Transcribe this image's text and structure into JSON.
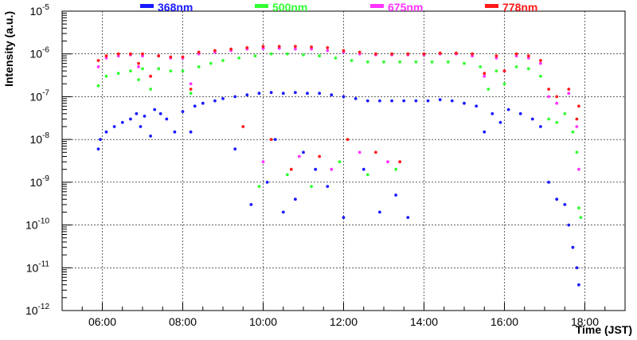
{
  "chart_data": {
    "type": "scatter",
    "title": "",
    "xlabel": "Time (JST)",
    "ylabel": "Intensity (a.u.)",
    "x_unit": "hours (JST)",
    "xlim": [
      5.0,
      19.0
    ],
    "ylim": [
      1e-12,
      1e-05
    ],
    "yscale": "log",
    "grid": true,
    "legend_position": "top",
    "x_ticks": [
      {
        "value": 6,
        "label": "06:00"
      },
      {
        "value": 8,
        "label": "08:00"
      },
      {
        "value": 10,
        "label": "10:00"
      },
      {
        "value": 12,
        "label": "12:00"
      },
      {
        "value": 14,
        "label": "14:00"
      },
      {
        "value": 16,
        "label": "16:00"
      },
      {
        "value": 18,
        "label": "18:00"
      }
    ],
    "y_ticks": [
      {
        "value": 1e-12,
        "base": "10",
        "exp": "-12"
      },
      {
        "value": 1e-11,
        "base": "10",
        "exp": "-11"
      },
      {
        "value": 1e-10,
        "base": "10",
        "exp": "-10"
      },
      {
        "value": 1e-09,
        "base": "10",
        "exp": "-9"
      },
      {
        "value": 1e-08,
        "base": "10",
        "exp": "-8"
      },
      {
        "value": 1e-07,
        "base": "10",
        "exp": "-7"
      },
      {
        "value": 1e-06,
        "base": "10",
        "exp": "-6"
      },
      {
        "value": 1e-05,
        "base": "10",
        "exp": "-5"
      }
    ],
    "series": [
      {
        "name": "368nm",
        "color": "#1a1aff",
        "points": [
          [
            5.9,
            6e-09
          ],
          [
            5.95,
            1e-08
          ],
          [
            6.1,
            1.5e-08
          ],
          [
            6.3,
            2e-08
          ],
          [
            6.5,
            2.5e-08
          ],
          [
            6.7,
            3e-08
          ],
          [
            6.85,
            4e-08
          ],
          [
            6.95,
            2e-08
          ],
          [
            7.05,
            3.5e-08
          ],
          [
            7.2,
            1.2e-08
          ],
          [
            7.3,
            5e-08
          ],
          [
            7.45,
            4e-08
          ],
          [
            7.6,
            3e-08
          ],
          [
            7.8,
            1.5e-08
          ],
          [
            8.0,
            4.5e-08
          ],
          [
            8.2,
            1.5e-08
          ],
          [
            8.3,
            6e-08
          ],
          [
            8.5,
            7e-08
          ],
          [
            8.8,
            8e-08
          ],
          [
            9.0,
            9e-08
          ],
          [
            9.3,
            1e-07
          ],
          [
            9.6,
            1.1e-07
          ],
          [
            9.9,
            1.2e-07
          ],
          [
            10.2,
            1.25e-07
          ],
          [
            10.5,
            1.2e-07
          ],
          [
            10.8,
            1.25e-07
          ],
          [
            11.1,
            1.2e-07
          ],
          [
            11.4,
            1.2e-07
          ],
          [
            11.7,
            1.1e-07
          ],
          [
            12.0,
            1e-07
          ],
          [
            12.3,
            9e-08
          ],
          [
            12.6,
            8e-08
          ],
          [
            12.9,
            8e-08
          ],
          [
            13.2,
            8e-08
          ],
          [
            13.5,
            8e-08
          ],
          [
            13.8,
            8e-08
          ],
          [
            14.1,
            8e-08
          ],
          [
            14.4,
            8.5e-08
          ],
          [
            14.7,
            8e-08
          ],
          [
            15.0,
            7e-08
          ],
          [
            15.3,
            6e-08
          ],
          [
            15.5,
            1.5e-08
          ],
          [
            15.7,
            4e-08
          ],
          [
            15.9,
            2.5e-08
          ],
          [
            16.1,
            5e-08
          ],
          [
            16.4,
            4e-08
          ],
          [
            16.7,
            3e-08
          ],
          [
            16.9,
            2e-08
          ],
          [
            17.1,
            1e-09
          ],
          [
            17.3,
            4e-10
          ],
          [
            17.5,
            3e-10
          ],
          [
            17.6,
            1e-10
          ],
          [
            17.7,
            3e-11
          ],
          [
            17.8,
            1e-11
          ],
          [
            17.85,
            4e-12
          ],
          [
            9.7,
            3e-10
          ],
          [
            10.1,
            1e-09
          ],
          [
            10.5,
            2e-10
          ],
          [
            10.8,
            4e-10
          ],
          [
            11.3,
            2e-09
          ],
          [
            11.6,
            8e-10
          ],
          [
            12.0,
            1.5e-10
          ],
          [
            12.5,
            2e-09
          ],
          [
            12.9,
            2e-10
          ],
          [
            13.3,
            5e-10
          ],
          [
            13.6,
            1.5e-10
          ],
          [
            9.3,
            6e-09
          ],
          [
            10.3,
            1e-08
          ],
          [
            11.0,
            5e-09
          ]
        ]
      },
      {
        "name": "500nm",
        "color": "#33ff33",
        "points": [
          [
            5.9,
            1.8e-07
          ],
          [
            6.1,
            3e-07
          ],
          [
            6.4,
            3.5e-07
          ],
          [
            6.7,
            4e-07
          ],
          [
            6.9,
            2.5e-07
          ],
          [
            7.0,
            4.5e-07
          ],
          [
            7.2,
            1.5e-07
          ],
          [
            7.4,
            4.5e-07
          ],
          [
            7.7,
            4e-07
          ],
          [
            8.0,
            4e-07
          ],
          [
            8.2,
            1.2e-07
          ],
          [
            8.4,
            5e-07
          ],
          [
            8.7,
            6e-07
          ],
          [
            9.0,
            7e-07
          ],
          [
            9.4,
            8e-07
          ],
          [
            9.8,
            9e-07
          ],
          [
            10.2,
            1e-06
          ],
          [
            10.6,
            1e-06
          ],
          [
            11.0,
            9.5e-07
          ],
          [
            11.4,
            9e-07
          ],
          [
            11.8,
            8e-07
          ],
          [
            12.2,
            7e-07
          ],
          [
            12.6,
            6.5e-07
          ],
          [
            13.0,
            6.5e-07
          ],
          [
            13.4,
            6.5e-07
          ],
          [
            13.8,
            6.5e-07
          ],
          [
            14.2,
            6.5e-07
          ],
          [
            14.6,
            6.5e-07
          ],
          [
            15.0,
            6e-07
          ],
          [
            15.4,
            5e-07
          ],
          [
            15.6,
            1.5e-07
          ],
          [
            15.8,
            4e-07
          ],
          [
            16.0,
            2e-07
          ],
          [
            16.3,
            5e-07
          ],
          [
            16.6,
            4.5e-07
          ],
          [
            16.9,
            3e-07
          ],
          [
            17.1,
            3e-08
          ],
          [
            17.3,
            2.5e-08
          ],
          [
            17.5,
            4e-08
          ],
          [
            17.7,
            1.5e-08
          ],
          [
            17.8,
            5e-09
          ],
          [
            17.85,
            2.5e-10
          ],
          [
            17.9,
            1.5e-10
          ],
          [
            9.9,
            8e-10
          ],
          [
            10.6,
            1.5e-09
          ],
          [
            11.2,
            8e-10
          ],
          [
            11.9,
            3e-09
          ],
          [
            12.6,
            1.5e-09
          ],
          [
            13.3,
            2e-09
          ]
        ]
      },
      {
        "name": "675nm",
        "color": "#ff33ff",
        "points": [
          [
            5.9,
            5e-07
          ],
          [
            6.1,
            8e-07
          ],
          [
            6.4,
            9e-07
          ],
          [
            6.7,
            9.5e-07
          ],
          [
            6.9,
            5e-07
          ],
          [
            7.0,
            9e-07
          ],
          [
            7.2,
            3e-07
          ],
          [
            7.4,
            9e-07
          ],
          [
            7.7,
            8e-07
          ],
          [
            8.0,
            8e-07
          ],
          [
            8.2,
            2e-07
          ],
          [
            8.4,
            1e-06
          ],
          [
            8.8,
            1.1e-06
          ],
          [
            9.2,
            1.2e-06
          ],
          [
            9.6,
            1.3e-06
          ],
          [
            10.0,
            1.35e-06
          ],
          [
            10.4,
            1.35e-06
          ],
          [
            10.8,
            1.3e-06
          ],
          [
            11.2,
            1.3e-06
          ],
          [
            11.6,
            1.2e-06
          ],
          [
            12.0,
            1.1e-06
          ],
          [
            12.4,
            1e-06
          ],
          [
            12.8,
            9.5e-07
          ],
          [
            13.2,
            9.5e-07
          ],
          [
            13.6,
            9.5e-07
          ],
          [
            14.0,
            9.5e-07
          ],
          [
            14.4,
            1e-06
          ],
          [
            14.8,
            1e-06
          ],
          [
            15.2,
            9e-07
          ],
          [
            15.5,
            3e-07
          ],
          [
            15.8,
            8e-07
          ],
          [
            16.0,
            4e-07
          ],
          [
            16.3,
            9e-07
          ],
          [
            16.6,
            8e-07
          ],
          [
            16.9,
            6e-07
          ],
          [
            17.1,
            1e-07
          ],
          [
            17.3,
            7e-08
          ],
          [
            17.6,
            1.2e-07
          ],
          [
            17.8,
            2e-08
          ],
          [
            17.85,
            2e-09
          ],
          [
            10.0,
            3e-09
          ],
          [
            10.9,
            4e-09
          ],
          [
            11.7,
            2e-09
          ],
          [
            12.4,
            5e-09
          ],
          [
            13.1,
            3e-09
          ]
        ]
      },
      {
        "name": "778nm",
        "color": "#ff1a1a",
        "points": [
          [
            5.9,
            7e-07
          ],
          [
            6.1,
            9e-07
          ],
          [
            6.4,
            1e-06
          ],
          [
            6.7,
            1e-06
          ],
          [
            6.9,
            6e-07
          ],
          [
            7.0,
            1e-06
          ],
          [
            7.2,
            3e-07
          ],
          [
            7.4,
            9e-07
          ],
          [
            7.7,
            8.5e-07
          ],
          [
            8.0,
            8.5e-07
          ],
          [
            8.2,
            1.5e-07
          ],
          [
            8.4,
            1.1e-06
          ],
          [
            8.8,
            1.2e-06
          ],
          [
            9.2,
            1.3e-06
          ],
          [
            9.6,
            1.4e-06
          ],
          [
            10.0,
            1.5e-06
          ],
          [
            10.4,
            1.5e-06
          ],
          [
            10.8,
            1.5e-06
          ],
          [
            11.2,
            1.45e-06
          ],
          [
            11.6,
            1.4e-06
          ],
          [
            12.0,
            1.2e-06
          ],
          [
            12.4,
            1.1e-06
          ],
          [
            12.8,
            1e-06
          ],
          [
            13.2,
            1e-06
          ],
          [
            13.6,
            1e-06
          ],
          [
            14.0,
            1e-06
          ],
          [
            14.4,
            1.05e-06
          ],
          [
            14.8,
            1.05e-06
          ],
          [
            15.2,
            1e-06
          ],
          [
            15.5,
            3.5e-07
          ],
          [
            15.8,
            9e-07
          ],
          [
            16.0,
            4e-07
          ],
          [
            16.3,
            1e-06
          ],
          [
            16.6,
            9e-07
          ],
          [
            16.9,
            7e-07
          ],
          [
            17.1,
            1.5e-07
          ],
          [
            17.3,
            1e-07
          ],
          [
            17.6,
            1.5e-07
          ],
          [
            17.8,
            3e-08
          ],
          [
            17.85,
            6e-08
          ],
          [
            9.5,
            2e-08
          ],
          [
            10.2,
            1e-08
          ],
          [
            10.7,
            2e-09
          ],
          [
            11.4,
            4e-09
          ],
          [
            12.1,
            1e-08
          ],
          [
            12.8,
            5e-09
          ],
          [
            13.4,
            3e-09
          ]
        ]
      }
    ]
  }
}
